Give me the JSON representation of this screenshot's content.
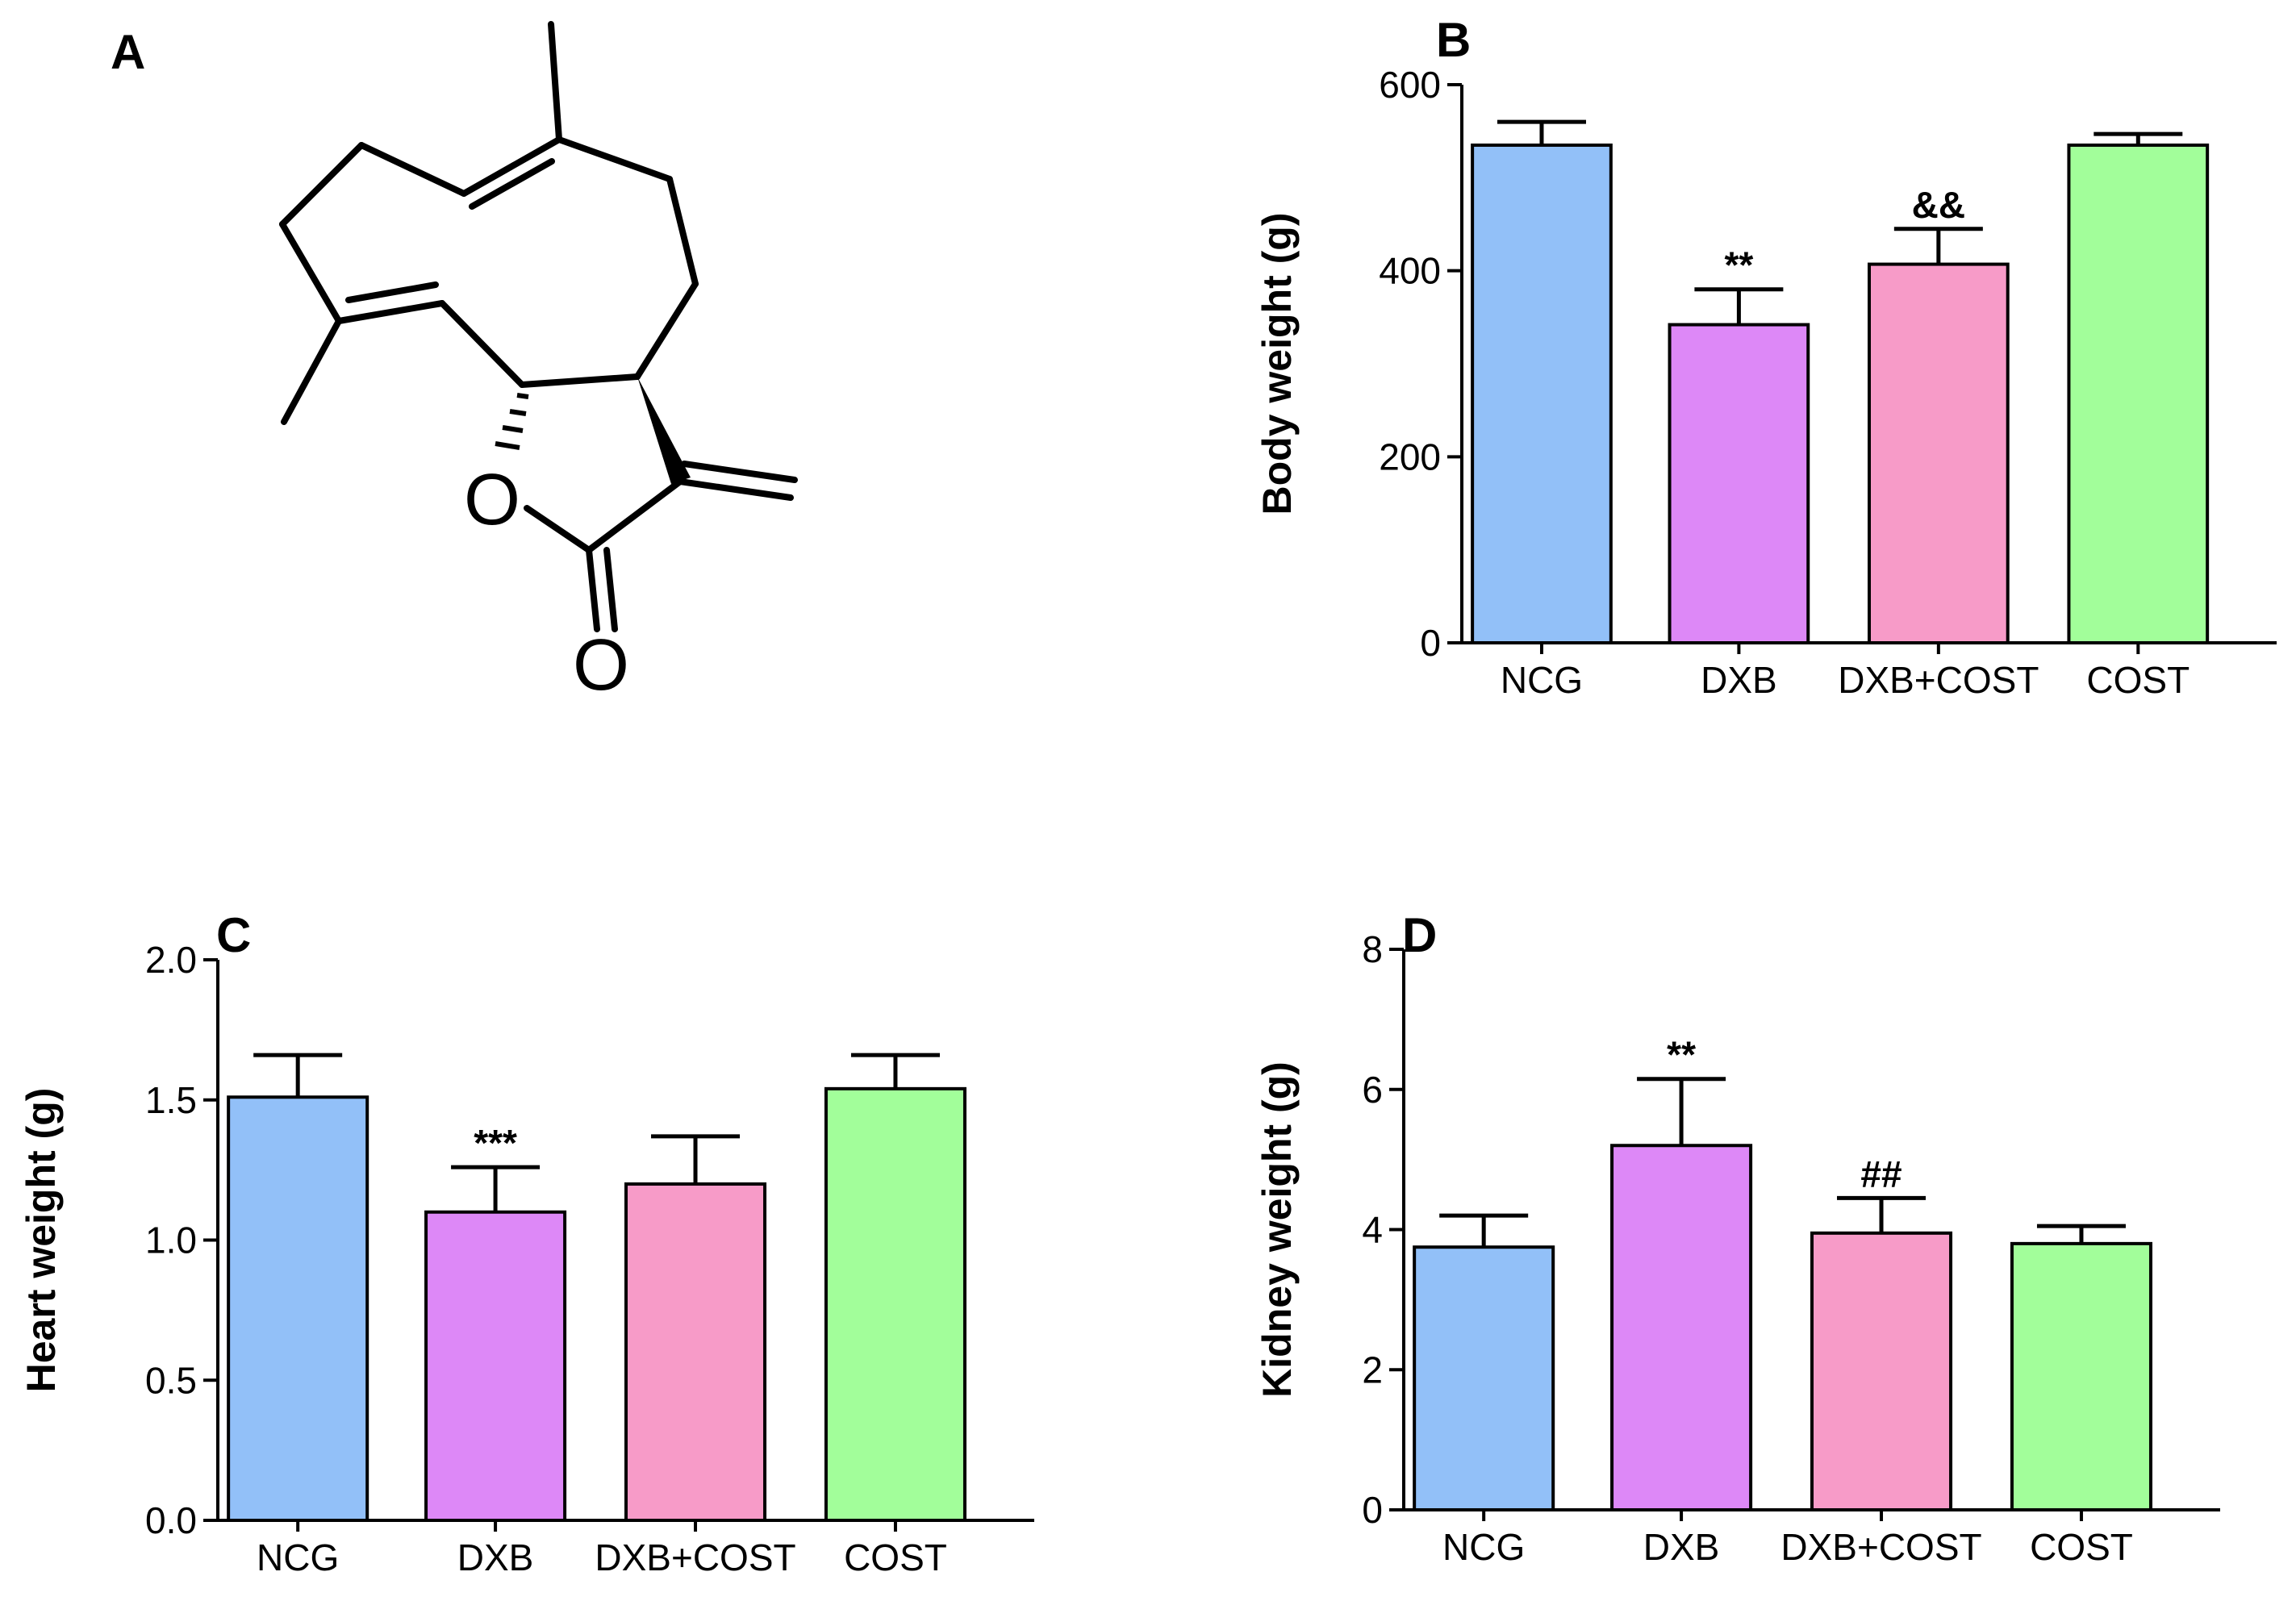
{
  "panels": {
    "a": "A",
    "b": "B",
    "c": "C",
    "d": "D"
  },
  "molecule": {
    "atom_o1": "O",
    "atom_o2": "O"
  },
  "colors": {
    "NCG": "#92c0f8",
    "DXB": "#dd88f7",
    "DXB+COST": "#f79bc8",
    "COST": "#a2fe9a"
  },
  "chart_data": [
    {
      "id": "B",
      "type": "bar",
      "ylabel": "Body weight (g)",
      "categories": [
        "NCG",
        "DXB",
        "DXB+COST",
        "COST"
      ],
      "values": [
        535,
        342,
        407,
        535
      ],
      "errors": [
        25,
        38,
        38,
        12
      ],
      "significance": [
        "",
        "**",
        "&&",
        ""
      ],
      "ylim": [
        0,
        600
      ],
      "yticks": [
        "0",
        "200",
        "400",
        "600"
      ],
      "ytick_values": [
        0,
        200,
        400,
        600
      ]
    },
    {
      "id": "C",
      "type": "bar",
      "ylabel": "Heart weight (g)",
      "categories": [
        "NCG",
        "DXB",
        "DXB+COST",
        "COST"
      ],
      "values": [
        1.51,
        1.1,
        1.2,
        1.54
      ],
      "errors": [
        0.15,
        0.16,
        0.17,
        0.12
      ],
      "significance": [
        "",
        "***",
        "",
        ""
      ],
      "ylim": [
        0,
        2.0
      ],
      "yticks": [
        "0.0",
        "0.5",
        "1.0",
        "1.5",
        "2.0"
      ],
      "ytick_values": [
        0,
        0.5,
        1.0,
        1.5,
        2.0
      ]
    },
    {
      "id": "D",
      "type": "bar",
      "ylabel": "Kidney weight (g)",
      "categories": [
        "NCG",
        "DXB",
        "DXB+COST",
        "COST"
      ],
      "values": [
        3.75,
        5.2,
        3.95,
        3.8
      ],
      "errors": [
        0.45,
        0.95,
        0.5,
        0.25
      ],
      "significance": [
        "",
        "**",
        "##",
        ""
      ],
      "ylim": [
        0,
        8
      ],
      "yticks": [
        "0",
        "2",
        "4",
        "6",
        "8"
      ],
      "ytick_values": [
        0,
        2,
        4,
        6,
        8
      ]
    }
  ]
}
